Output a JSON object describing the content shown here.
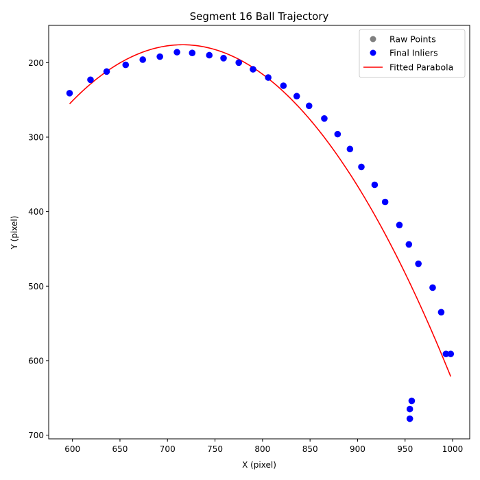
{
  "chart_data": {
    "type": "scatter",
    "title": "Segment 16 Ball Trajectory",
    "xlabel": "X (pixel)",
    "ylabel": "Y (pixel)",
    "xlim": [
      575,
      1018
    ],
    "ylim": [
      705,
      150
    ],
    "y_inverted": true,
    "grid": false,
    "legend_position": "top-right",
    "x_ticks": [
      600,
      650,
      700,
      750,
      800,
      850,
      900,
      950,
      1000
    ],
    "y_ticks": [
      200,
      300,
      400,
      500,
      600,
      700
    ],
    "colors": {
      "raw": "#808080",
      "inliers": "#0000ff",
      "fit": "#ff0000"
    },
    "legend": [
      {
        "label": "Raw Points",
        "kind": "dot",
        "color": "#808080"
      },
      {
        "label": "Final Inliers",
        "kind": "dot",
        "color": "#0000ff"
      },
      {
        "label": "Fitted Parabola",
        "kind": "line",
        "color": "#ff0000"
      }
    ],
    "series": [
      {
        "name": "Final Inliers",
        "points": [
          [
            597,
            241
          ],
          [
            619,
            223
          ],
          [
            636,
            212
          ],
          [
            656,
            203
          ],
          [
            674,
            196
          ],
          [
            692,
            192
          ],
          [
            710,
            186
          ],
          [
            726,
            187
          ],
          [
            744,
            190
          ],
          [
            759,
            194
          ],
          [
            775,
            200
          ],
          [
            790,
            209
          ],
          [
            806,
            220
          ],
          [
            822,
            231
          ],
          [
            836,
            245
          ],
          [
            849,
            258
          ],
          [
            865,
            275
          ],
          [
            879,
            296
          ],
          [
            892,
            316
          ],
          [
            904,
            340
          ],
          [
            918,
            364
          ],
          [
            929,
            387
          ],
          [
            944,
            418
          ],
          [
            954,
            444
          ],
          [
            964,
            470
          ],
          [
            979,
            502
          ],
          [
            988,
            535
          ],
          [
            993,
            591
          ],
          [
            998,
            591
          ],
          [
            957,
            654
          ],
          [
            955,
            665
          ],
          [
            955,
            678
          ]
        ]
      },
      {
        "name": "Fitted Parabola",
        "vertex": [
          716,
          176
        ],
        "x_range": [
          597,
          998
        ],
        "coef_a": 0.0056
      }
    ]
  }
}
